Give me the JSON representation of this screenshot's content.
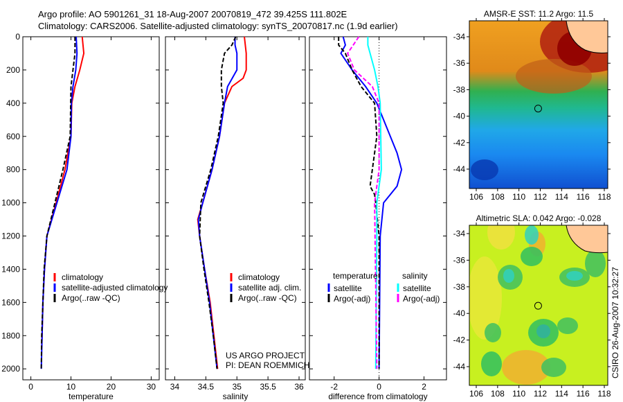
{
  "title_line1": "Argo profile: AO 5901261_31 18-Aug-2007 20070819_472 39.425S 111.802E",
  "title_line2": "Climatology: CARS2006. Satellite-adjusted climatology: synTS_20070817.nc (1.9d earlier)",
  "credit": "CSIRO 26-Aug-2007 10:32:27",
  "project": [
    "US ARGO PROJECT",
    "PI: DEAN ROEMMICH"
  ],
  "colors": {
    "climatology": "#ff0000",
    "satellite": "#0000ff",
    "argo": "#000000",
    "sal_satellite": "#00ffff",
    "sal_argo": "#ff00ff"
  },
  "chart_data": [
    {
      "type": "line",
      "xlabel": "temperature",
      "ylabel": "depth",
      "xlim": [
        -2,
        32
      ],
      "ylim": [
        2000,
        0
      ],
      "xticks": [
        0,
        10,
        20,
        30
      ],
      "yticks": [
        0,
        200,
        400,
        600,
        800,
        1000,
        1200,
        1400,
        1600,
        1800,
        2000
      ],
      "legend": [
        "climatology",
        "satellite-adjusted climatology",
        "Argo(..raw -QC)"
      ],
      "series": [
        {
          "name": "climatology",
          "color": "#ff0000",
          "dash": false,
          "depth": [
            0,
            50,
            100,
            200,
            300,
            400,
            600,
            800,
            1000,
            1200,
            1400,
            1600,
            1800,
            1870
          ],
          "values": [
            12.8,
            13,
            13.2,
            12.2,
            11,
            10.2,
            10,
            8.5,
            6.3,
            4,
            3.4,
            3.0,
            2.8,
            2.7
          ]
        },
        {
          "name": "satellite-adjusted climatology",
          "color": "#0000ff",
          "dash": false,
          "depth": [
            0,
            100,
            200,
            300,
            400,
            600,
            800,
            1000,
            1200,
            1400,
            1600,
            1800,
            2000
          ],
          "values": [
            11.3,
            11.5,
            11.2,
            10.5,
            10.1,
            10.0,
            9.0,
            6.5,
            4,
            3.4,
            3,
            2.8,
            2.6
          ]
        },
        {
          "name": "Argo(..raw -QC)",
          "color": "#000000",
          "dash": true,
          "depth": [
            0,
            100,
            200,
            300,
            600,
            800,
            1000,
            1200,
            1400,
            1800,
            2000
          ],
          "values": [
            11,
            11,
            10.5,
            10,
            9.8,
            8,
            6,
            4,
            3.3,
            2.7,
            2.6
          ]
        }
      ]
    },
    {
      "type": "line",
      "xlabel": "salinity",
      "ylabel": "depth",
      "xlim": [
        33.85,
        36.1
      ],
      "ylim": [
        2000,
        0
      ],
      "xticks": [
        34,
        34.5,
        35,
        35.5,
        36
      ],
      "xticklabels": [
        "34",
        "34.5",
        "35",
        "35.5",
        "36"
      ],
      "legend": [
        "climatology",
        "satellite adj. clim.",
        "Argo(..raw -QC)"
      ],
      "series": [
        {
          "name": "climatology",
          "color": "#ff0000",
          "dash": false,
          "depth": [
            0,
            100,
            200,
            250,
            300,
            400,
            600,
            800,
            1000,
            1100,
            1200,
            1400,
            1600,
            1800,
            2000
          ],
          "values": [
            35.12,
            35.15,
            35.15,
            35.1,
            34.92,
            34.8,
            34.72,
            34.6,
            34.45,
            34.37,
            34.4,
            34.48,
            34.57,
            34.63,
            34.69
          ]
        },
        {
          "name": "satellite adj. clim.",
          "color": "#0000ff",
          "dash": false,
          "depth": [
            0,
            50,
            100,
            200,
            300,
            400,
            600,
            800,
            1000,
            1100,
            1200,
            1400,
            1600,
            1800,
            2000
          ],
          "values": [
            34.97,
            34.97,
            35.0,
            35.0,
            34.85,
            34.8,
            34.72,
            34.6,
            34.45,
            34.38,
            34.4,
            34.48,
            34.56,
            34.62,
            34.68
          ]
        },
        {
          "name": "Argo(..raw -QC)",
          "color": "#000000",
          "dash": true,
          "depth": [
            0,
            50,
            100,
            200,
            300,
            400,
            600,
            800,
            1000,
            1200,
            1400,
            1600,
            1800,
            2000
          ],
          "values": [
            34.98,
            34.92,
            34.8,
            34.75,
            34.75,
            34.78,
            34.7,
            34.58,
            34.42,
            34.4,
            34.47,
            34.55,
            34.62,
            34.68
          ]
        }
      ]
    },
    {
      "type": "line",
      "xlabel": "difference from climatology",
      "ylabel": "depth",
      "xlim": [
        -3.1,
        3
      ],
      "ylim": [
        2000,
        0
      ],
      "xticks": [
        -2,
        0,
        2
      ],
      "xticklabels": [
        "-2",
        "0",
        "2"
      ],
      "legend_headers": [
        "temperature",
        "salinity"
      ],
      "legend": [
        "satellite",
        "Argo(-adj)",
        "satellite",
        "Argo(-adj)"
      ],
      "series": [
        {
          "name": "temperature satellite",
          "color": "#0000ff",
          "dash": false,
          "depth": [
            0,
            50,
            100,
            200,
            300,
            400,
            500,
            600,
            700,
            800,
            900,
            1000,
            1200,
            2000
          ],
          "values": [
            -1.6,
            -1.5,
            -1.7,
            -1.2,
            -0.6,
            -0.1,
            0.2,
            0.5,
            0.8,
            1.0,
            0.8,
            0.2,
            0.05,
            0
          ]
        },
        {
          "name": "temperature Argo(-adj)",
          "color": "#000000",
          "dash": true,
          "depth": [
            0,
            50,
            100,
            200,
            300,
            400,
            600,
            800,
            900,
            950,
            1000,
            1200,
            2000
          ],
          "values": [
            -1.8,
            -1.8,
            -1.5,
            -1.2,
            -0.8,
            -0.2,
            -0.1,
            -0.3,
            -0.4,
            -0.2,
            -0.15,
            0,
            0
          ]
        },
        {
          "name": "salinity satellite",
          "color": "#00ffff",
          "dash": false,
          "depth": [
            0,
            50,
            100,
            200,
            300,
            400,
            800,
            1000,
            1200,
            2000
          ],
          "values": [
            -0.5,
            -0.5,
            -0.4,
            -0.2,
            -0.05,
            0.05,
            0.1,
            -0.1,
            -0.1,
            -0.15
          ]
        },
        {
          "name": "salinity Argo(-adj)",
          "color": "#ff00ff",
          "dash": true,
          "depth": [
            0,
            100,
            200,
            300,
            400,
            800,
            1000,
            2000
          ],
          "values": [
            -0.9,
            -1.4,
            -1.1,
            -0.3,
            0,
            0,
            -0.2,
            -0.1
          ]
        }
      ]
    },
    {
      "type": "heatmap",
      "title": "AMSR-E SST: 11.2 Argo: 11.5",
      "xlim": [
        105.3,
        118.3
      ],
      "ylim": [
        -45.5,
        -33.6
      ],
      "xticks": [
        106,
        108,
        110,
        112,
        114,
        116,
        118
      ],
      "yticks": [
        -34,
        -36,
        -38,
        -40,
        -42,
        -44
      ],
      "marker": {
        "lon": 111.8,
        "lat": -39.425
      }
    },
    {
      "type": "heatmap",
      "title": "Altimetric SLA: 0.042 Argo: -0.028",
      "xlim": [
        105.3,
        118.3
      ],
      "ylim": [
        -45.5,
        -33.6
      ],
      "xticks": [
        106,
        108,
        110,
        112,
        114,
        116,
        118
      ],
      "yticks": [
        -34,
        -36,
        -38,
        -40,
        -42,
        -44
      ],
      "marker": {
        "lon": 111.8,
        "lat": -39.425
      }
    }
  ]
}
